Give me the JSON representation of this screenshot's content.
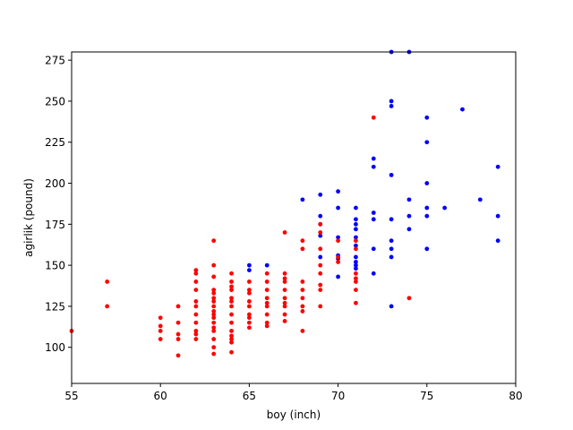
{
  "chart_data": {
    "type": "scatter",
    "title": "",
    "xlabel": "boy (inch)",
    "ylabel": "agirlik (pound)",
    "xlim": [
      55,
      80
    ],
    "ylim": [
      78,
      280
    ],
    "xticks": [
      55,
      60,
      65,
      70,
      75,
      80
    ],
    "yticks": [
      100,
      125,
      150,
      175,
      200,
      225,
      250,
      275
    ],
    "grid": false,
    "legend": "none",
    "series": [
      {
        "color": "#0000ff",
        "points": [
          [
            65,
            147
          ],
          [
            65,
            150
          ],
          [
            66,
            150
          ],
          [
            68,
            190
          ],
          [
            69,
            193
          ],
          [
            69,
            180
          ],
          [
            69,
            175
          ],
          [
            69,
            168
          ],
          [
            69,
            155
          ],
          [
            70,
            195
          ],
          [
            70,
            185
          ],
          [
            70,
            167
          ],
          [
            70,
            156
          ],
          [
            70,
            154
          ],
          [
            70,
            143
          ],
          [
            71,
            185
          ],
          [
            71,
            178
          ],
          [
            71,
            175
          ],
          [
            71,
            172
          ],
          [
            71,
            167
          ],
          [
            71,
            162
          ],
          [
            71,
            155
          ],
          [
            71,
            152
          ],
          [
            71,
            150
          ],
          [
            71,
            148
          ],
          [
            72,
            215
          ],
          [
            72,
            210
          ],
          [
            72,
            182
          ],
          [
            72,
            178
          ],
          [
            72,
            160
          ],
          [
            72,
            145
          ],
          [
            73,
            280
          ],
          [
            73,
            250
          ],
          [
            73,
            247
          ],
          [
            73,
            205
          ],
          [
            73,
            178
          ],
          [
            73,
            165
          ],
          [
            73,
            160
          ],
          [
            73,
            155
          ],
          [
            73,
            125
          ],
          [
            74,
            280
          ],
          [
            74,
            190
          ],
          [
            74,
            180
          ],
          [
            74,
            172
          ],
          [
            75,
            240
          ],
          [
            75,
            225
          ],
          [
            75,
            200
          ],
          [
            75,
            185
          ],
          [
            75,
            180
          ],
          [
            75,
            160
          ],
          [
            76,
            185
          ],
          [
            77,
            245
          ],
          [
            78,
            190
          ],
          [
            79,
            210
          ],
          [
            79,
            180
          ],
          [
            79,
            165
          ]
        ]
      },
      {
        "color": "#ff0000",
        "points": [
          [
            55,
            110
          ],
          [
            57,
            140
          ],
          [
            57,
            125
          ],
          [
            60,
            118
          ],
          [
            60,
            113
          ],
          [
            60,
            110
          ],
          [
            60,
            105
          ],
          [
            61,
            125
          ],
          [
            61,
            115
          ],
          [
            61,
            108
          ],
          [
            61,
            105
          ],
          [
            61,
            95
          ],
          [
            62,
            147
          ],
          [
            62,
            145
          ],
          [
            62,
            140
          ],
          [
            62,
            135
          ],
          [
            62,
            128
          ],
          [
            62,
            125
          ],
          [
            62,
            120
          ],
          [
            62,
            115
          ],
          [
            62,
            110
          ],
          [
            62,
            108
          ],
          [
            62,
            105
          ],
          [
            63,
            165
          ],
          [
            63,
            150
          ],
          [
            63,
            143
          ],
          [
            63,
            135
          ],
          [
            63,
            133
          ],
          [
            63,
            130
          ],
          [
            63,
            128
          ],
          [
            63,
            125
          ],
          [
            63,
            122
          ],
          [
            63,
            120
          ],
          [
            63,
            118
          ],
          [
            63,
            115
          ],
          [
            63,
            112
          ],
          [
            63,
            110
          ],
          [
            63,
            105
          ],
          [
            63,
            100
          ],
          [
            63,
            96
          ],
          [
            64,
            145
          ],
          [
            64,
            140
          ],
          [
            64,
            137
          ],
          [
            64,
            135
          ],
          [
            64,
            130
          ],
          [
            64,
            128
          ],
          [
            64,
            125
          ],
          [
            64,
            120
          ],
          [
            64,
            115
          ],
          [
            64,
            110
          ],
          [
            64,
            107
          ],
          [
            64,
            105
          ],
          [
            64,
            103
          ],
          [
            64,
            97
          ],
          [
            65,
            140
          ],
          [
            65,
            135
          ],
          [
            65,
            133
          ],
          [
            65,
            128
          ],
          [
            65,
            125
          ],
          [
            65,
            120
          ],
          [
            65,
            118
          ],
          [
            65,
            115
          ],
          [
            65,
            112
          ],
          [
            66,
            145
          ],
          [
            66,
            140
          ],
          [
            66,
            135
          ],
          [
            66,
            130
          ],
          [
            66,
            127
          ],
          [
            66,
            125
          ],
          [
            66,
            120
          ],
          [
            66,
            115
          ],
          [
            66,
            113
          ],
          [
            67,
            170
          ],
          [
            67,
            145
          ],
          [
            67,
            142
          ],
          [
            67,
            140
          ],
          [
            67,
            135
          ],
          [
            67,
            130
          ],
          [
            67,
            127
          ],
          [
            67,
            125
          ],
          [
            67,
            120
          ],
          [
            67,
            116
          ],
          [
            68,
            165
          ],
          [
            68,
            160
          ],
          [
            68,
            140
          ],
          [
            68,
            135
          ],
          [
            68,
            130
          ],
          [
            68,
            125
          ],
          [
            68,
            122
          ],
          [
            68,
            110
          ],
          [
            69,
            175
          ],
          [
            69,
            170
          ],
          [
            69,
            160
          ],
          [
            69,
            150
          ],
          [
            69,
            145
          ],
          [
            69,
            138
          ],
          [
            69,
            135
          ],
          [
            69,
            125
          ],
          [
            70,
            165
          ],
          [
            70,
            155
          ],
          [
            70,
            152
          ],
          [
            71,
            165
          ],
          [
            71,
            160
          ],
          [
            71,
            145
          ],
          [
            71,
            142
          ],
          [
            71,
            140
          ],
          [
            71,
            135
          ],
          [
            71,
            127
          ],
          [
            72,
            240
          ],
          [
            74,
            130
          ]
        ]
      }
    ]
  }
}
